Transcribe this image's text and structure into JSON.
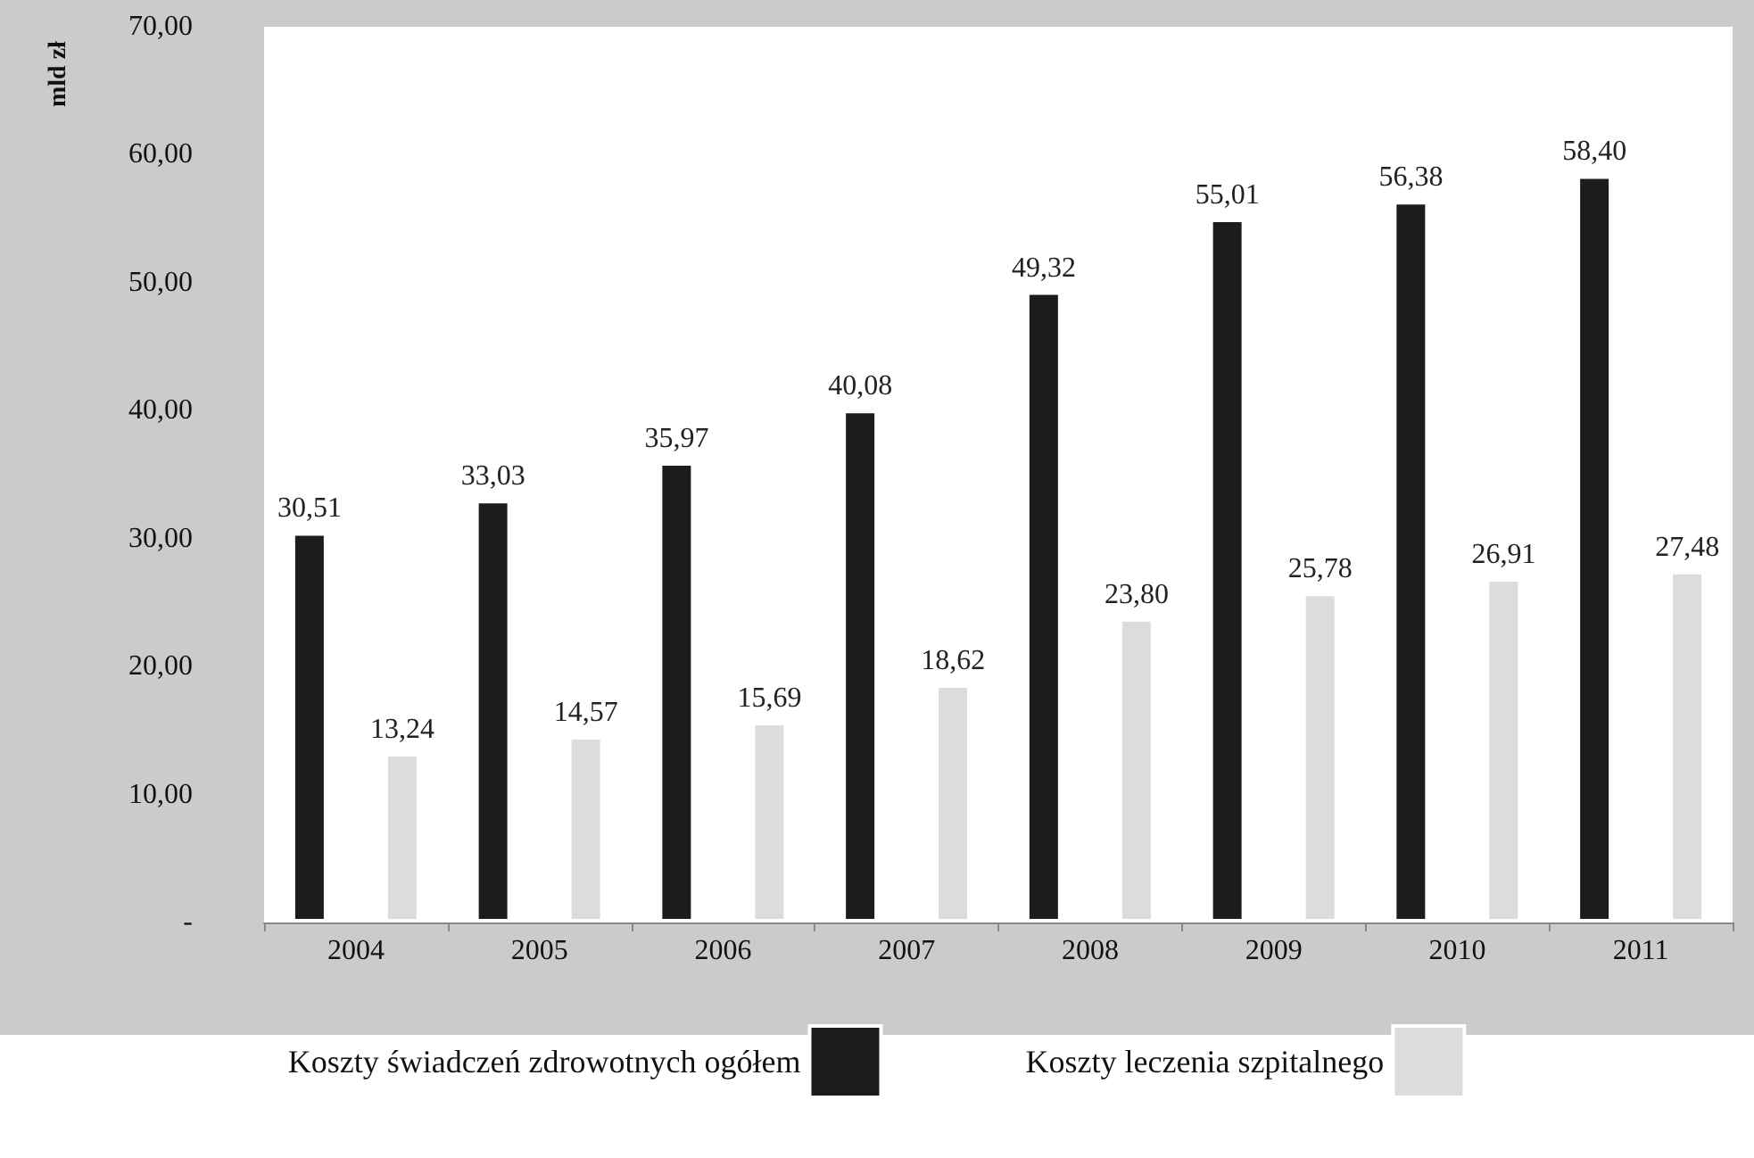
{
  "chart_data": {
    "type": "bar",
    "ylabel": "mld zł",
    "categories": [
      "2004",
      "2005",
      "2006",
      "2007",
      "2008",
      "2009",
      "2010",
      "2011"
    ],
    "series": [
      {
        "name": "Koszty świadczeń zdrowotnych ogółem",
        "color": "#1c1c1c",
        "values": [
          30.51,
          33.03,
          35.97,
          40.08,
          49.32,
          55.01,
          56.38,
          58.4
        ],
        "value_labels": [
          "30,51",
          "33,03",
          "35,97",
          "40,08",
          "49,32",
          "55,01",
          "56,38",
          "58,40"
        ]
      },
      {
        "name": "Koszty leczenia szpitalnego",
        "color": "#dcdcdc",
        "values": [
          13.24,
          14.57,
          15.69,
          18.62,
          23.8,
          25.78,
          26.91,
          27.48
        ],
        "value_labels": [
          "13,24",
          "14,57",
          "15,69",
          "18,62",
          "23,80",
          "25,78",
          "26,91",
          "27,48"
        ]
      }
    ],
    "ylim": [
      0,
      70
    ],
    "yticks": [
      {
        "value": 0,
        "label": "-"
      },
      {
        "value": 10,
        "label": "10,00"
      },
      {
        "value": 20,
        "label": "20,00"
      },
      {
        "value": 30,
        "label": "30,00"
      },
      {
        "value": 40,
        "label": "40,00"
      },
      {
        "value": 50,
        "label": "50,00"
      },
      {
        "value": 60,
        "label": "60,00"
      },
      {
        "value": 70,
        "label": "70,00"
      }
    ],
    "grid": false,
    "legend": "bottom"
  }
}
